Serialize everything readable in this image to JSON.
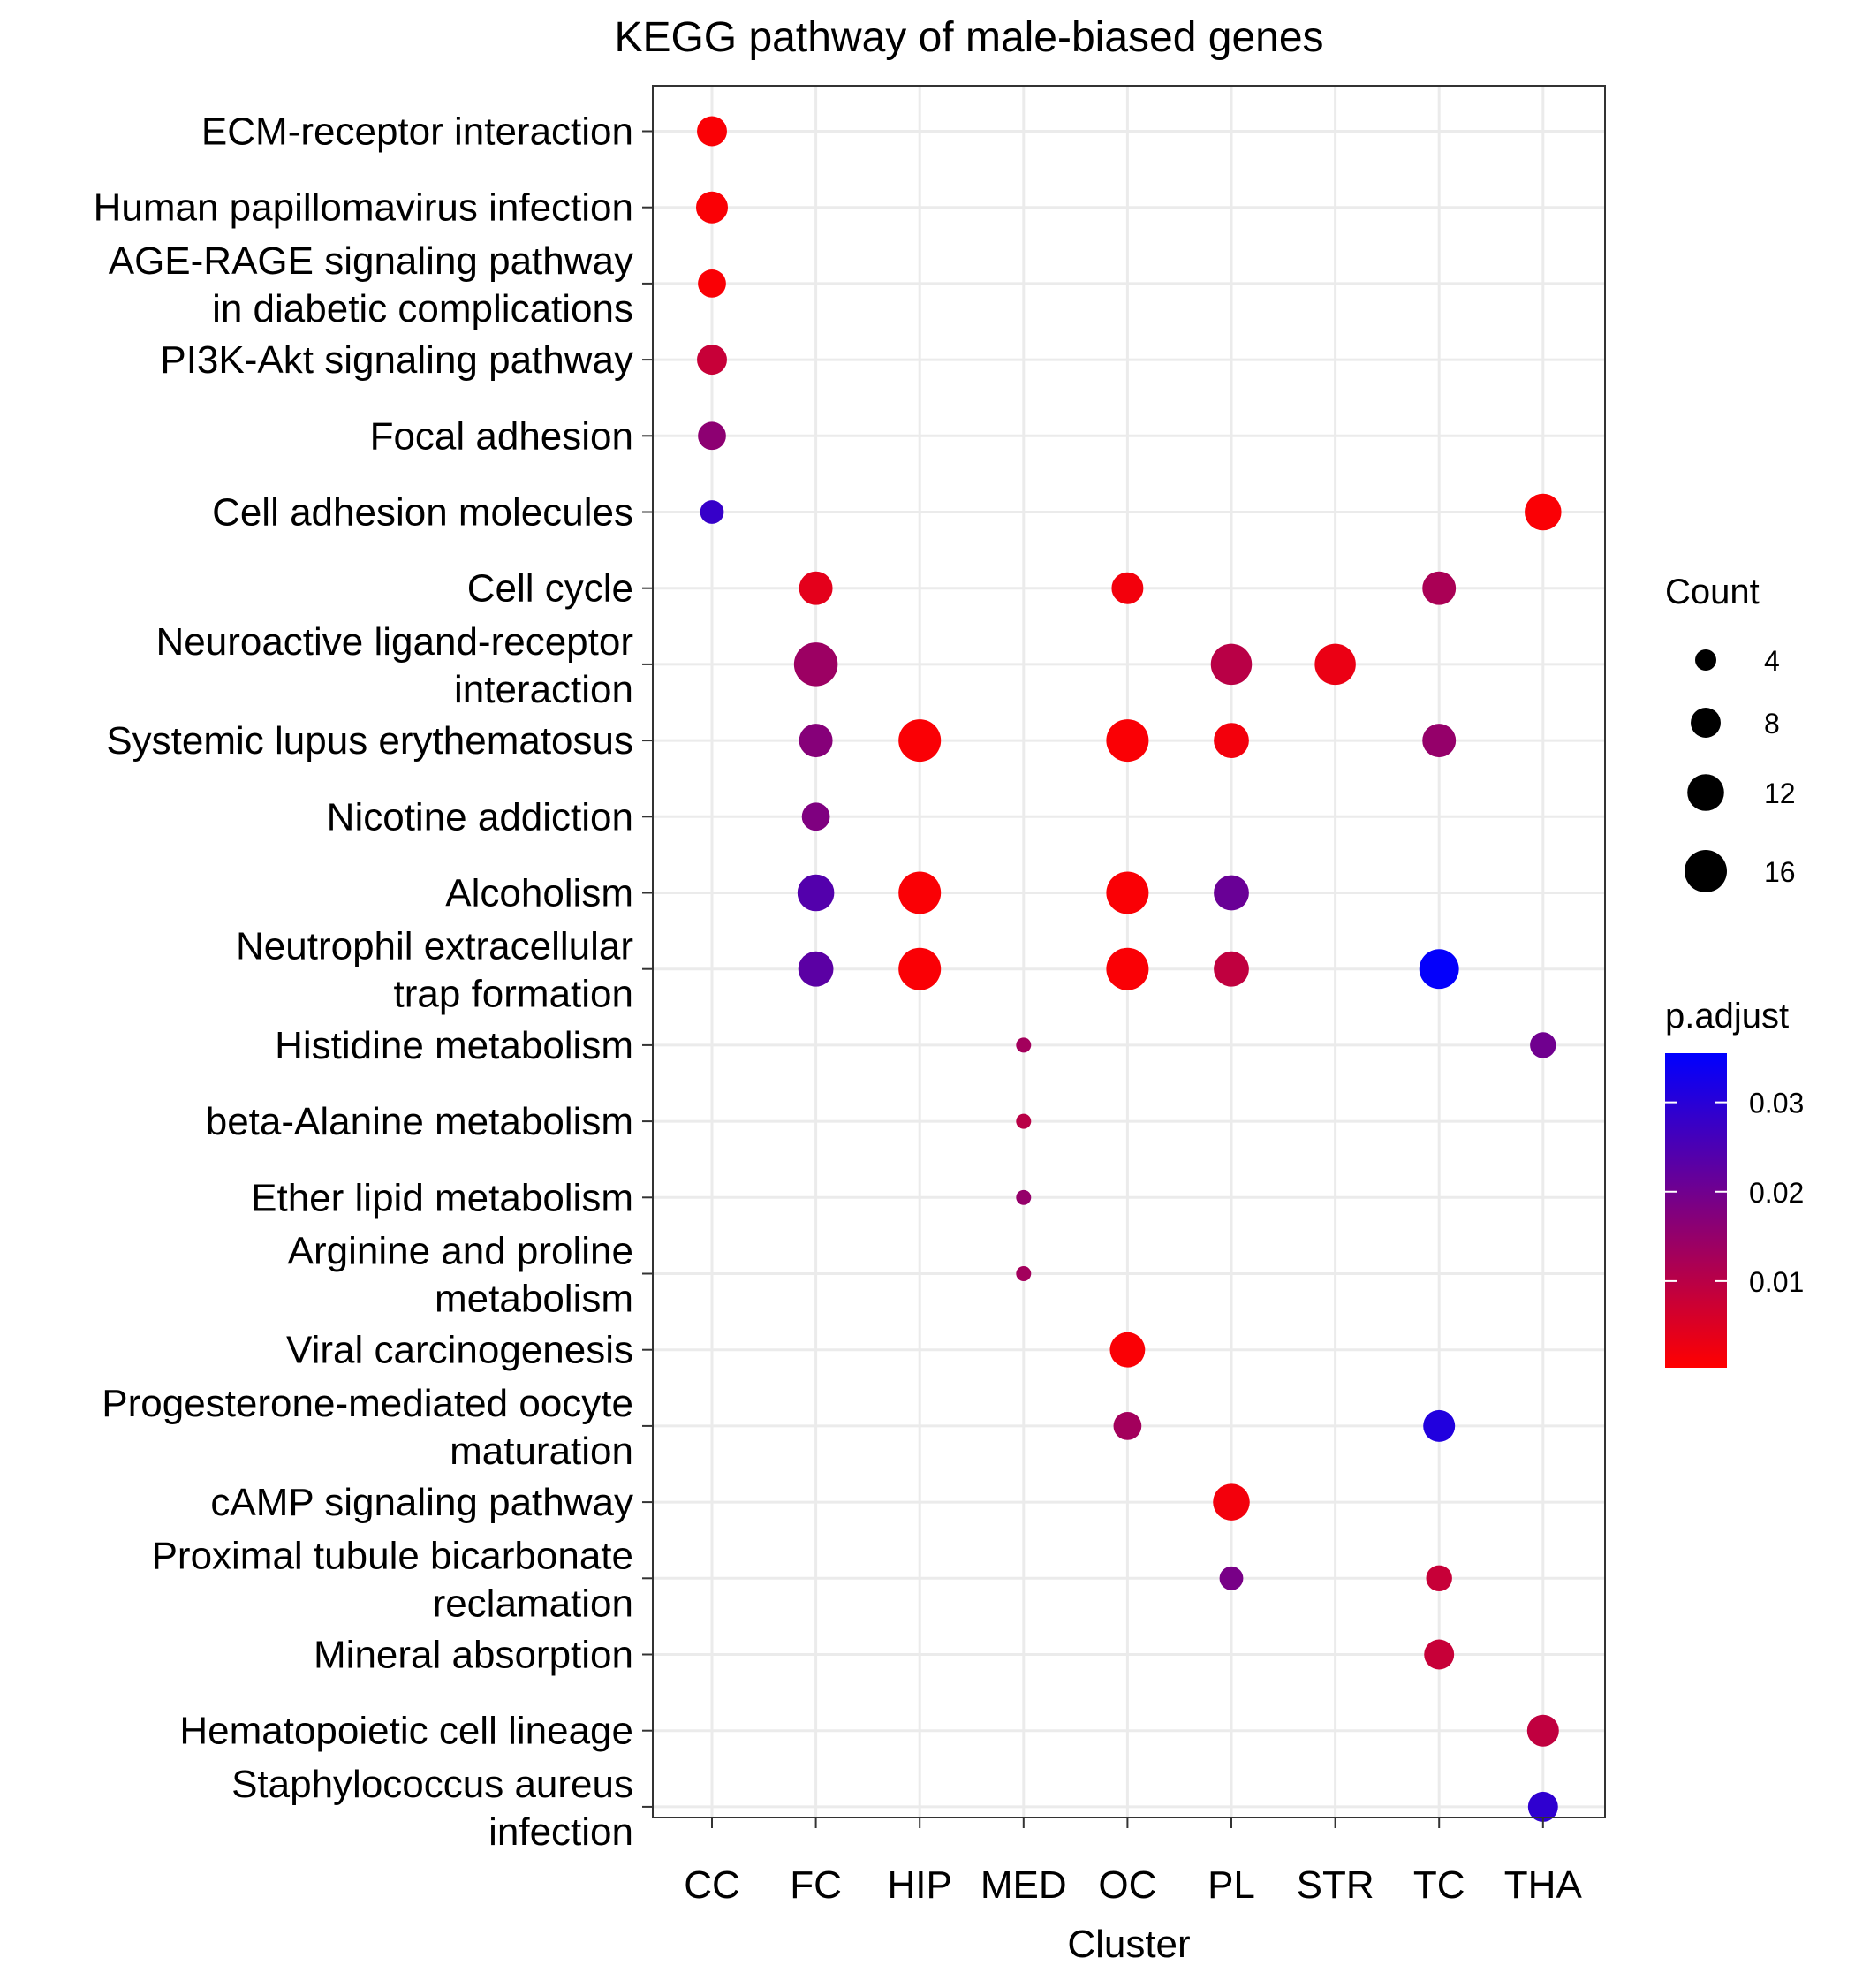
{
  "chart_data": {
    "type": "scatter",
    "title": "KEGG pathway of male-biased genes",
    "xlabel": "Cluster",
    "ylabel": "",
    "categories": [
      "CC",
      "FC",
      "HIP",
      "MED",
      "OC",
      "PL",
      "STR",
      "TC",
      "THA"
    ],
    "terms": [
      [
        "ECM-receptor interaction"
      ],
      [
        "Human papillomavirus infection"
      ],
      [
        "AGE-RAGE signaling pathway",
        "in diabetic complications"
      ],
      [
        "PI3K-Akt signaling pathway"
      ],
      [
        "Focal adhesion"
      ],
      [
        "Cell adhesion molecules"
      ],
      [
        "Cell cycle"
      ],
      [
        "Neuroactive ligand-receptor",
        "interaction"
      ],
      [
        "Systemic lupus erythematosus"
      ],
      [
        "Nicotine addiction"
      ],
      [
        "Alcoholism"
      ],
      [
        "Neutrophil extracellular",
        "trap formation"
      ],
      [
        "Histidine metabolism"
      ],
      [
        "beta-Alanine metabolism"
      ],
      [
        "Ether lipid metabolism"
      ],
      [
        "Arginine and proline",
        "metabolism"
      ],
      [
        "Viral carcinogenesis"
      ],
      [
        "Progesterone-mediated oocyte",
        "maturation"
      ],
      [
        "cAMP signaling pathway"
      ],
      [
        "Proximal tubule bicarbonate",
        "reclamation"
      ],
      [
        "Mineral absorption"
      ],
      [
        "Hematopoietic cell lineage"
      ],
      [
        "Staphylococcus aureus",
        "infection"
      ]
    ],
    "points": [
      {
        "cluster": "CC",
        "term": 0,
        "count": 8,
        "p_adjust": 0.001
      },
      {
        "cluster": "CC",
        "term": 1,
        "count": 9,
        "p_adjust": 0.001
      },
      {
        "cluster": "CC",
        "term": 2,
        "count": 7,
        "p_adjust": 0.001
      },
      {
        "cluster": "CC",
        "term": 3,
        "count": 8,
        "p_adjust": 0.008
      },
      {
        "cluster": "CC",
        "term": 4,
        "count": 7,
        "p_adjust": 0.016
      },
      {
        "cluster": "CC",
        "term": 5,
        "count": 5,
        "p_adjust": 0.028
      },
      {
        "cluster": "THA",
        "term": 5,
        "count": 12,
        "p_adjust": 0.001
      },
      {
        "cluster": "FC",
        "term": 6,
        "count": 10,
        "p_adjust": 0.004
      },
      {
        "cluster": "OC",
        "term": 6,
        "count": 9,
        "p_adjust": 0.002
      },
      {
        "cluster": "TC",
        "term": 6,
        "count": 10,
        "p_adjust": 0.012
      },
      {
        "cluster": "FC",
        "term": 7,
        "count": 17,
        "p_adjust": 0.014
      },
      {
        "cluster": "PL",
        "term": 7,
        "count": 15,
        "p_adjust": 0.01
      },
      {
        "cluster": "STR",
        "term": 7,
        "count": 15,
        "p_adjust": 0.003
      },
      {
        "cluster": "FC",
        "term": 8,
        "count": 10,
        "p_adjust": 0.017
      },
      {
        "cluster": "HIP",
        "term": 8,
        "count": 16,
        "p_adjust": 0.001
      },
      {
        "cluster": "OC",
        "term": 8,
        "count": 16,
        "p_adjust": 0.001
      },
      {
        "cluster": "PL",
        "term": 8,
        "count": 11,
        "p_adjust": 0.002
      },
      {
        "cluster": "TC",
        "term": 8,
        "count": 10,
        "p_adjust": 0.015
      },
      {
        "cluster": "FC",
        "term": 9,
        "count": 7,
        "p_adjust": 0.018
      },
      {
        "cluster": "FC",
        "term": 10,
        "count": 12,
        "p_adjust": 0.024
      },
      {
        "cluster": "HIP",
        "term": 10,
        "count": 16,
        "p_adjust": 0.001
      },
      {
        "cluster": "OC",
        "term": 10,
        "count": 16,
        "p_adjust": 0.001
      },
      {
        "cluster": "PL",
        "term": 10,
        "count": 11,
        "p_adjust": 0.021
      },
      {
        "cluster": "FC",
        "term": 11,
        "count": 11,
        "p_adjust": 0.023
      },
      {
        "cluster": "HIP",
        "term": 11,
        "count": 16,
        "p_adjust": 0.001
      },
      {
        "cluster": "OC",
        "term": 11,
        "count": 16,
        "p_adjust": 0.001
      },
      {
        "cluster": "PL",
        "term": 11,
        "count": 11,
        "p_adjust": 0.009
      },
      {
        "cluster": "TC",
        "term": 11,
        "count": 14,
        "p_adjust": 0.035
      },
      {
        "cluster": "MED",
        "term": 12,
        "count": 2,
        "p_adjust": 0.013
      },
      {
        "cluster": "THA",
        "term": 12,
        "count": 6,
        "p_adjust": 0.02
      },
      {
        "cluster": "MED",
        "term": 13,
        "count": 2,
        "p_adjust": 0.01
      },
      {
        "cluster": "MED",
        "term": 14,
        "count": 2,
        "p_adjust": 0.015
      },
      {
        "cluster": "MED",
        "term": 15,
        "count": 2,
        "p_adjust": 0.013
      },
      {
        "cluster": "OC",
        "term": 16,
        "count": 11,
        "p_adjust": 0.001
      },
      {
        "cluster": "OC",
        "term": 17,
        "count": 7,
        "p_adjust": 0.013
      },
      {
        "cluster": "TC",
        "term": 17,
        "count": 9,
        "p_adjust": 0.031
      },
      {
        "cluster": "PL",
        "term": 18,
        "count": 12,
        "p_adjust": 0.002
      },
      {
        "cluster": "PL",
        "term": 19,
        "count": 5,
        "p_adjust": 0.019
      },
      {
        "cluster": "TC",
        "term": 19,
        "count": 6,
        "p_adjust": 0.008
      },
      {
        "cluster": "TC",
        "term": 20,
        "count": 8,
        "p_adjust": 0.008
      },
      {
        "cluster": "THA",
        "term": 21,
        "count": 9,
        "p_adjust": 0.009
      },
      {
        "cluster": "THA",
        "term": 22,
        "count": 8,
        "p_adjust": 0.029
      }
    ],
    "size_legend": {
      "title": "Count",
      "labels": [
        "4",
        "8",
        "12",
        "16"
      ],
      "values": [
        4,
        8,
        12,
        16
      ]
    },
    "color_legend": {
      "title": "p.adjust",
      "labels": [
        "0.01",
        "0.02",
        "0.03"
      ],
      "values": [
        0.01,
        0.02,
        0.03
      ],
      "range": [
        0.0003,
        0.0355
      ],
      "low_color": "#ff0000",
      "high_color": "#0000ff"
    },
    "grid": true,
    "legend_position": "right"
  }
}
